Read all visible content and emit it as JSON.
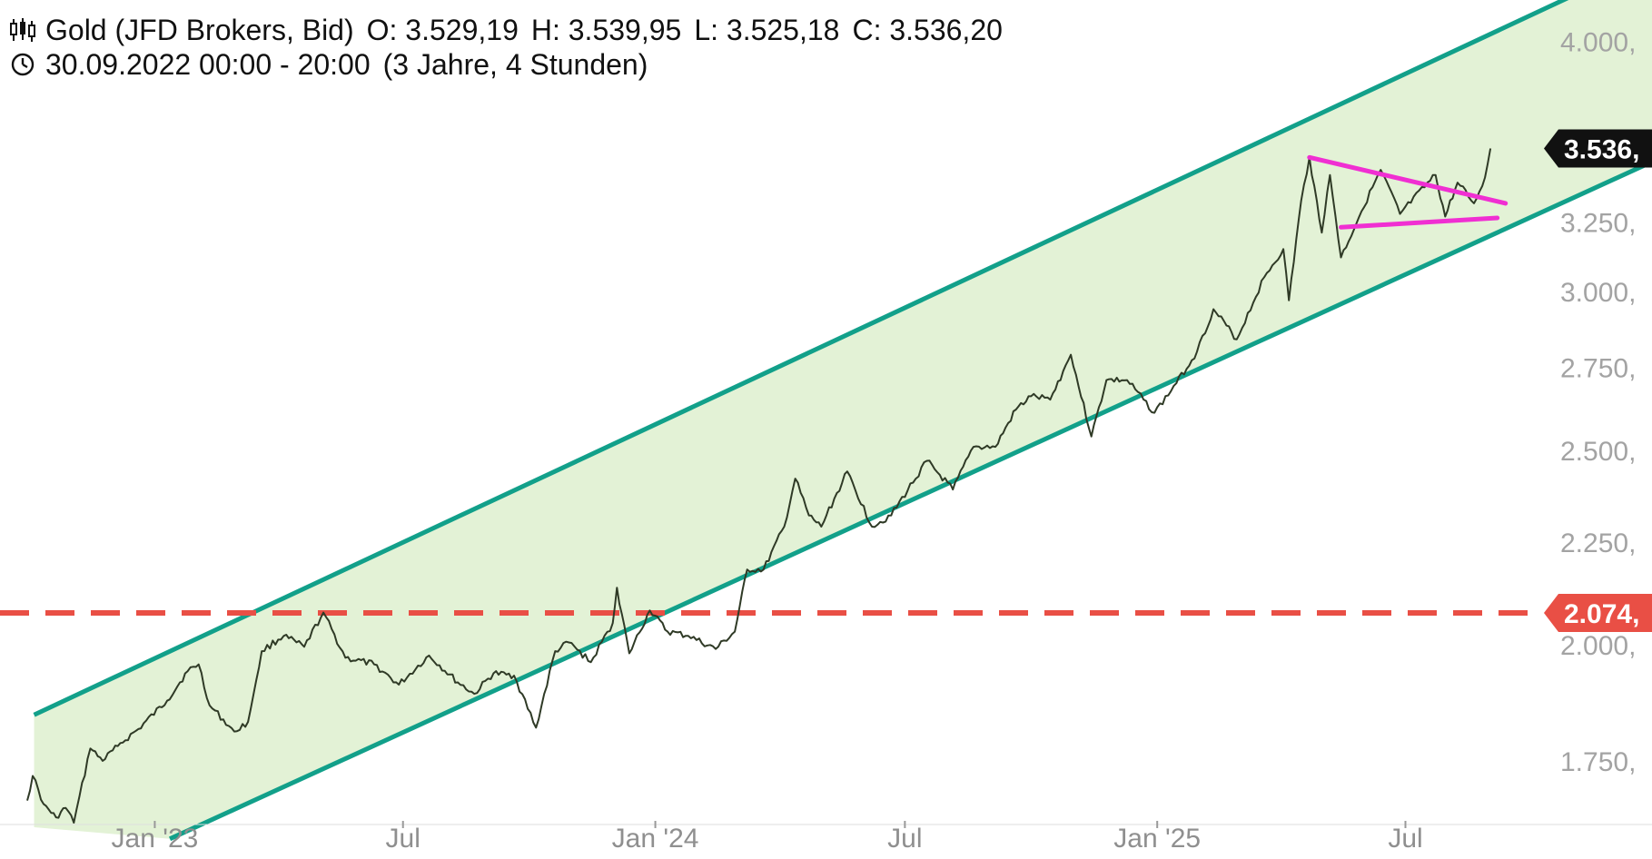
{
  "header": {
    "symbol": "Gold (JFD Brokers, Bid)",
    "open_label": "O:",
    "open": "3.529,19",
    "high_label": "H:",
    "high": "3.539,95",
    "low_label": "L:",
    "low": "3.525,18",
    "close_label": "C:",
    "close": "3.536,20",
    "date_range": "30.09.2022 00:00 - 20:00",
    "period": "(3 Jahre, 4 Stunden)",
    "chart_type_icon": "candlestick-icon",
    "time_icon": "clock-icon"
  },
  "colors": {
    "channel_fill": "#e3f2d6",
    "channel_line": "#12a08a",
    "price_line": "#2f3a26",
    "triangle": "#f02fd2",
    "horizontal_level": "#e94f45",
    "last_price_tag": "#111111"
  },
  "chart_data": {
    "type": "line",
    "title": "Gold (JFD Brokers, Bid)",
    "y_scale": "log",
    "ylim": [
      1630,
      4150
    ],
    "xlim": [
      "2022-09-30",
      "2025-10-10"
    ],
    "y_ticks": [
      {
        "value": 4000,
        "label": "4.000,"
      },
      {
        "value": 3250,
        "label": "3.250,"
      },
      {
        "value": 3000,
        "label": "3.000,"
      },
      {
        "value": 2750,
        "label": "2.750,"
      },
      {
        "value": 2500,
        "label": "2.500,"
      },
      {
        "value": 2250,
        "label": "2.250,"
      },
      {
        "value": 2000,
        "label": "2.000,"
      },
      {
        "value": 1750,
        "label": "1.750,"
      }
    ],
    "x_ticks": [
      {
        "date": "2023-01-01",
        "label": "Jan '23"
      },
      {
        "date": "2023-07-01",
        "label": "Jul"
      },
      {
        "date": "2024-01-01",
        "label": "Jan '24"
      },
      {
        "date": "2024-07-01",
        "label": "Jul"
      },
      {
        "date": "2025-01-01",
        "label": "Jan '25"
      },
      {
        "date": "2025-07-01",
        "label": "Jul"
      }
    ],
    "series": [
      {
        "values": [
          {
            "x": "2022-09-30",
            "y": 1672
          },
          {
            "x": "2022-10-04",
            "y": 1720
          },
          {
            "x": "2022-10-12",
            "y": 1665
          },
          {
            "x": "2022-10-21",
            "y": 1640
          },
          {
            "x": "2022-10-28",
            "y": 1658
          },
          {
            "x": "2022-11-03",
            "y": 1630
          },
          {
            "x": "2022-11-15",
            "y": 1775
          },
          {
            "x": "2022-11-24",
            "y": 1750
          },
          {
            "x": "2022-12-05",
            "y": 1780
          },
          {
            "x": "2022-12-20",
            "y": 1815
          },
          {
            "x": "2023-01-10",
            "y": 1875
          },
          {
            "x": "2023-01-25",
            "y": 1940
          },
          {
            "x": "2023-02-02",
            "y": 1955
          },
          {
            "x": "2023-02-10",
            "y": 1865
          },
          {
            "x": "2023-02-28",
            "y": 1810
          },
          {
            "x": "2023-03-10",
            "y": 1830
          },
          {
            "x": "2023-03-20",
            "y": 1985
          },
          {
            "x": "2023-04-05",
            "y": 2020
          },
          {
            "x": "2023-04-20",
            "y": 1995
          },
          {
            "x": "2023-05-04",
            "y": 2075
          },
          {
            "x": "2023-05-20",
            "y": 1970
          },
          {
            "x": "2023-06-10",
            "y": 1955
          },
          {
            "x": "2023-06-28",
            "y": 1910
          },
          {
            "x": "2023-07-20",
            "y": 1975
          },
          {
            "x": "2023-08-10",
            "y": 1915
          },
          {
            "x": "2023-08-22",
            "y": 1890
          },
          {
            "x": "2023-09-05",
            "y": 1935
          },
          {
            "x": "2023-09-20",
            "y": 1930
          },
          {
            "x": "2023-10-06",
            "y": 1818
          },
          {
            "x": "2023-10-20",
            "y": 1985
          },
          {
            "x": "2023-10-30",
            "y": 2005
          },
          {
            "x": "2023-11-15",
            "y": 1960
          },
          {
            "x": "2023-12-01",
            "y": 2050
          },
          {
            "x": "2023-12-04",
            "y": 2135
          },
          {
            "x": "2023-12-13",
            "y": 1980
          },
          {
            "x": "2023-12-28",
            "y": 2080
          },
          {
            "x": "2024-01-10",
            "y": 2030
          },
          {
            "x": "2024-01-25",
            "y": 2020
          },
          {
            "x": "2024-02-14",
            "y": 1990
          },
          {
            "x": "2024-02-28",
            "y": 2030
          },
          {
            "x": "2024-03-08",
            "y": 2180
          },
          {
            "x": "2024-03-20",
            "y": 2180
          },
          {
            "x": "2024-04-04",
            "y": 2290
          },
          {
            "x": "2024-04-12",
            "y": 2420
          },
          {
            "x": "2024-04-22",
            "y": 2320
          },
          {
            "x": "2024-05-01",
            "y": 2290
          },
          {
            "x": "2024-05-20",
            "y": 2440
          },
          {
            "x": "2024-06-07",
            "y": 2290
          },
          {
            "x": "2024-06-21",
            "y": 2320
          },
          {
            "x": "2024-07-17",
            "y": 2470
          },
          {
            "x": "2024-08-05",
            "y": 2390
          },
          {
            "x": "2024-08-20",
            "y": 2510
          },
          {
            "x": "2024-09-05",
            "y": 2510
          },
          {
            "x": "2024-09-20",
            "y": 2620
          },
          {
            "x": "2024-10-01",
            "y": 2660
          },
          {
            "x": "2024-10-15",
            "y": 2650
          },
          {
            "x": "2024-10-30",
            "y": 2790
          },
          {
            "x": "2024-11-14",
            "y": 2540
          },
          {
            "x": "2024-11-25",
            "y": 2710
          },
          {
            "x": "2024-12-10",
            "y": 2710
          },
          {
            "x": "2024-12-30",
            "y": 2610
          },
          {
            "x": "2025-01-15",
            "y": 2700
          },
          {
            "x": "2025-01-30",
            "y": 2800
          },
          {
            "x": "2025-02-11",
            "y": 2940
          },
          {
            "x": "2025-02-28",
            "y": 2840
          },
          {
            "x": "2025-03-20",
            "y": 3050
          },
          {
            "x": "2025-04-03",
            "y": 3150
          },
          {
            "x": "2025-04-07",
            "y": 2970
          },
          {
            "x": "2025-04-16",
            "y": 3330
          },
          {
            "x": "2025-04-22",
            "y": 3500
          },
          {
            "x": "2025-05-01",
            "y": 3210
          },
          {
            "x": "2025-05-07",
            "y": 3430
          },
          {
            "x": "2025-05-15",
            "y": 3120
          },
          {
            "x": "2025-05-30",
            "y": 3290
          },
          {
            "x": "2025-06-13",
            "y": 3450
          },
          {
            "x": "2025-06-27",
            "y": 3280
          },
          {
            "x": "2025-07-23",
            "y": 3430
          },
          {
            "x": "2025-07-30",
            "y": 3270
          },
          {
            "x": "2025-08-08",
            "y": 3400
          },
          {
            "x": "2025-08-20",
            "y": 3320
          },
          {
            "x": "2025-08-28",
            "y": 3420
          },
          {
            "x": "2025-09-01",
            "y": 3536
          }
        ]
      }
    ],
    "channel": {
      "upper": [
        {
          "x": "2022-10-05",
          "y": 1845
        },
        {
          "x": "2025-10-10",
          "y": 4150
        }
      ],
      "lower": [
        {
          "x": "2023-01-12",
          "y": 1600
        },
        {
          "x": "2025-10-10",
          "y": 3290
        }
      ]
    },
    "triangle": {
      "upper": [
        {
          "x": "2025-04-22",
          "y": 3500
        },
        {
          "x": "2025-09-12",
          "y": 3320
        }
      ],
      "lower": [
        {
          "x": "2025-05-15",
          "y": 3230
        },
        {
          "x": "2025-09-06",
          "y": 3265
        }
      ]
    },
    "horizontal_level": {
      "value": 2074,
      "label": "2.074,"
    },
    "last_price": {
      "value": 3536,
      "label": "3.536,"
    }
  }
}
